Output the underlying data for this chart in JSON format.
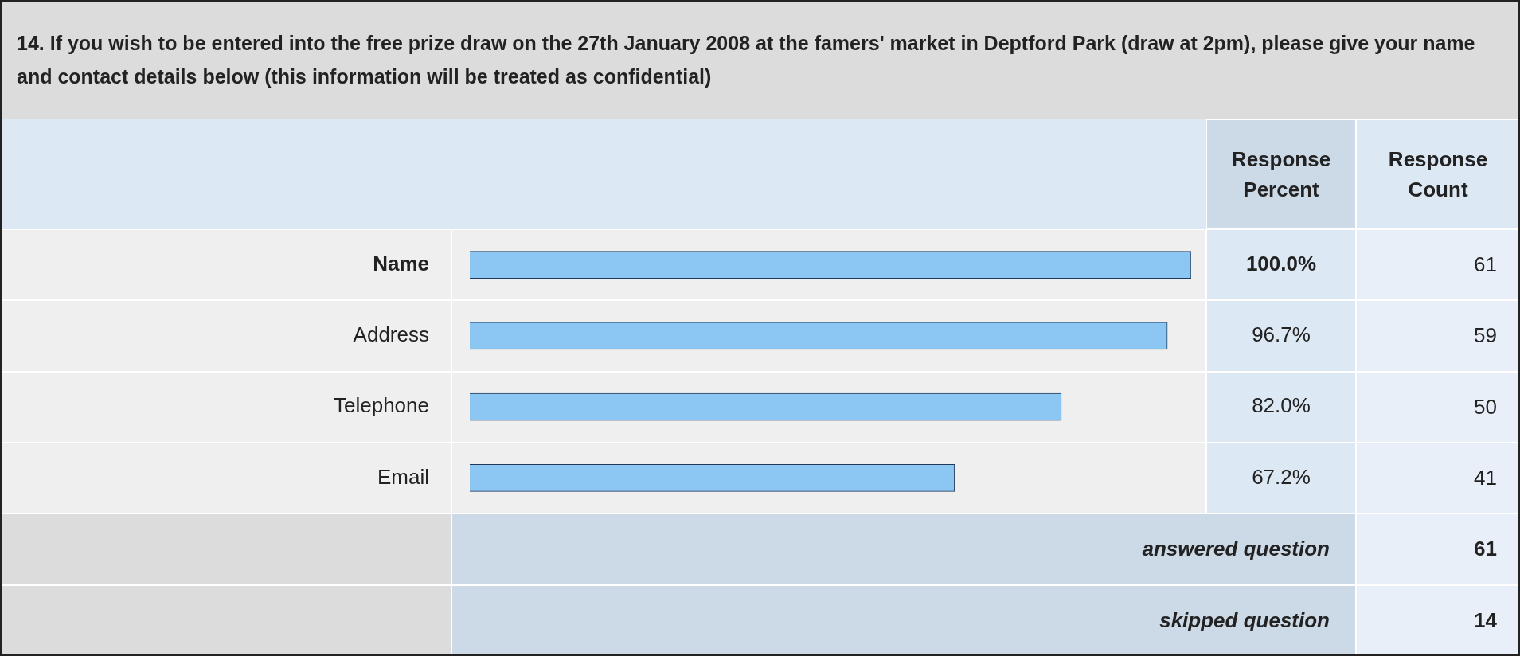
{
  "chart_data": {
    "type": "bar",
    "orientation": "horizontal",
    "title": "14. If you wish to be entered into the free prize draw on the 27th January 2008 at the famers' market in Deptford Park (draw at 2pm), please give your name and contact details below (this information will be treated as confidential)",
    "categories": [
      "Name",
      "Address",
      "Telephone",
      "Email"
    ],
    "values": [
      100.0,
      96.7,
      82.0,
      67.2
    ],
    "value_labels": [
      "100.0%",
      "96.7%",
      "82.0%",
      "67.2%"
    ],
    "color": "#8cc6f2",
    "xlim": [
      0,
      100
    ],
    "tick_labels": "y",
    "legend": false,
    "annotations": [
      "Response Percent",
      "Response Count",
      "61",
      "59",
      "50",
      "41",
      "answered question",
      "61",
      "skipped question",
      "14"
    ]
  }
}
